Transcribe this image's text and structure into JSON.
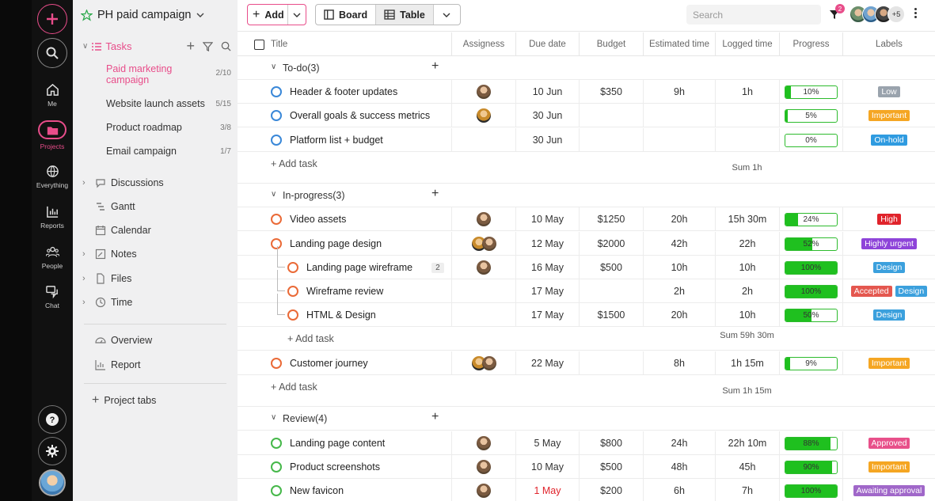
{
  "nav": {
    "items": [
      {
        "label": "Me",
        "icon": "home-icon"
      },
      {
        "label": "Projects",
        "icon": "folder-icon"
      },
      {
        "label": "Everything",
        "icon": "globe-icon"
      },
      {
        "label": "Reports",
        "icon": "bar-chart-icon"
      },
      {
        "label": "People",
        "icon": "people-icon"
      },
      {
        "label": "Chat",
        "icon": "chat-icon"
      }
    ],
    "accent": "#e84d8a"
  },
  "sidebar": {
    "title": "PH paid campaign",
    "tasks_label": "Tasks",
    "projects": [
      {
        "name": "Paid marketing campaign",
        "count": "2/10"
      },
      {
        "name": "Website launch assets",
        "count": "5/15"
      },
      {
        "name": "Product roadmap",
        "count": "3/8"
      },
      {
        "name": "Email campaign",
        "count": "1/7"
      }
    ],
    "sections": [
      "Discussions",
      "Gantt",
      "Calendar",
      "Notes",
      "Files",
      "Time"
    ],
    "extra": [
      "Overview",
      "Report"
    ],
    "project_tabs": "Project tabs"
  },
  "toolbar": {
    "add_label": "Add",
    "board_label": "Board",
    "table_label": "Table",
    "search_placeholder": "Search",
    "filter_badge": "2",
    "more_users": "+5"
  },
  "columns": [
    "Title",
    "Assigness",
    "Due date",
    "Budget",
    "Estimated time",
    "Logged time",
    "Progress",
    "Labels"
  ],
  "groups": [
    {
      "name": "To-do(3)",
      "tasks": [
        {
          "title": "Header & footer updates",
          "due": "10 Jun",
          "budget": "$350",
          "est": "9h",
          "logged": "1h",
          "progress": "10%",
          "labels": [
            "Low"
          ]
        },
        {
          "title": "Overall goals & success metrics",
          "due": "30 Jun",
          "budget": "",
          "est": "",
          "logged": "",
          "progress": "5%",
          "labels": [
            "Important"
          ]
        },
        {
          "title": "Platform list + budget",
          "due": "30 Jun",
          "budget": "",
          "est": "",
          "logged": "",
          "progress": "0%",
          "labels": [
            "On-hold"
          ]
        }
      ],
      "add_task": "+ Add task",
      "sum": "Sum 1h"
    },
    {
      "name": "In-progress(3)",
      "tasks": [
        {
          "title": "Video assets",
          "due": "10 May",
          "budget": "$1250",
          "est": "20h",
          "logged": "15h 30m",
          "progress": "24%",
          "labels": [
            "High"
          ]
        },
        {
          "title": "Landing page design",
          "due": "12 May",
          "budget": "$2000",
          "est": "42h",
          "logged": "22h",
          "progress": "52%",
          "labels": [
            "Highly urgent"
          ]
        },
        {
          "title": "Landing page wireframe",
          "badge": "2",
          "due": "16 May",
          "budget": "$500",
          "est": "10h",
          "logged": "10h",
          "progress": "100%",
          "labels": [
            "Design"
          ]
        },
        {
          "title": "Wireframe review",
          "due": "17 May",
          "budget": "",
          "est": "2h",
          "logged": "2h",
          "progress": "100%",
          "labels": [
            "Accepted",
            "Design"
          ]
        },
        {
          "title": "HTML & Design",
          "due": "17 May",
          "budget": "$1500",
          "est": "20h",
          "logged": "10h",
          "progress": "50%",
          "labels": [
            "Design"
          ]
        }
      ],
      "sub_add_task": "+ Add task",
      "sub_sum": "Sum 59h 30m",
      "extra_task": {
        "title": "Customer journey",
        "due": "22 May",
        "budget": "",
        "est": "8h",
        "logged": "1h 15m",
        "progress": "9%",
        "labels": [
          "Important"
        ]
      },
      "add_task": "+ Add task",
      "sum": "Sum 1h 15m"
    },
    {
      "name": "Review(4)",
      "tasks": [
        {
          "title": "Landing page content",
          "due": "5 May",
          "budget": "$800",
          "est": "24h",
          "logged": "22h 10m",
          "progress": "88%",
          "labels": [
            "Approved"
          ]
        },
        {
          "title": "Product screenshots",
          "due": "10 May",
          "budget": "$500",
          "est": "48h",
          "logged": "45h",
          "progress": "90%",
          "labels": [
            "Important"
          ]
        },
        {
          "title": "New favicon",
          "due": "1 May",
          "budget": "$200",
          "est": "6h",
          "logged": "7h",
          "progress": "100%",
          "labels": [
            "Awaiting approval"
          ]
        }
      ]
    }
  ],
  "label_colors": {
    "Low": "#9aa3ad",
    "Important": "#f5a623",
    "On-hold": "#2f9be0",
    "High": "#e0232b",
    "Highly urgent": "#8e44d9",
    "Design": "#3ba0dd",
    "Accepted": "#e4574f",
    "Approved": "#e8508a",
    "Awaiting approval": "#a067c9"
  }
}
